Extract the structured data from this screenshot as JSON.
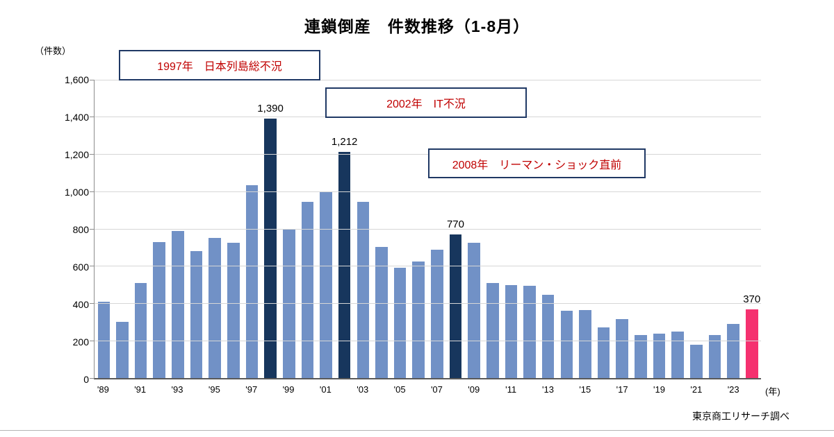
{
  "title": "連鎖倒産　件数推移（1-8月）",
  "y_axis_unit": "（件数）",
  "x_axis_unit": "(年)",
  "source": "東京商工リサーチ調べ",
  "annotations": [
    {
      "text": "1997年　日本列島総不況"
    },
    {
      "text": "2002年　IT不況"
    },
    {
      "text": "2008年　リーマン・ショック直前"
    }
  ],
  "chart_data": {
    "type": "bar",
    "title": "連鎖倒産　件数推移（1-8月）",
    "ylabel": "（件数）",
    "xlabel": "(年)",
    "ylim": [
      0,
      1600
    ],
    "ytick_interval": 200,
    "ytick_labels": [
      "1,600",
      "1,400",
      "1,200",
      "1,000",
      "800",
      "600",
      "400",
      "200",
      "0"
    ],
    "grid": true,
    "legend": "none",
    "x": [
      1989,
      1990,
      1991,
      1992,
      1993,
      1994,
      1995,
      1996,
      1997,
      1998,
      1999,
      2000,
      2001,
      2002,
      2003,
      2004,
      2005,
      2006,
      2007,
      2008,
      2009,
      2010,
      2011,
      2012,
      2013,
      2014,
      2015,
      2016,
      2017,
      2018,
      2019,
      2020,
      2021,
      2022,
      2023,
      2024
    ],
    "values": [
      410,
      300,
      510,
      730,
      790,
      680,
      750,
      725,
      1035,
      1390,
      795,
      945,
      1000,
      1212,
      945,
      705,
      590,
      625,
      690,
      770,
      725,
      510,
      500,
      495,
      445,
      360,
      365,
      270,
      315,
      230,
      240,
      250,
      180,
      230,
      290,
      370
    ],
    "x_tick_labels": [
      "'89",
      "",
      "'91",
      "",
      "'93",
      "",
      "'95",
      "",
      "'97",
      "",
      "'99",
      "",
      "'01",
      "",
      "'03",
      "",
      "'05",
      "",
      "'07",
      "",
      "'09",
      "",
      "'11",
      "",
      "'13",
      "",
      "'15",
      "",
      "'17",
      "",
      "'19",
      "",
      "'21",
      "",
      "'23",
      ""
    ],
    "highlight_years_navy": [
      1998,
      2002,
      2008
    ],
    "highlight_years_pink": [
      2024
    ],
    "bar_value_labels": [
      {
        "year": 1998,
        "label": "1,390"
      },
      {
        "year": 2002,
        "label": "1,212"
      },
      {
        "year": 2008,
        "label": "770"
      },
      {
        "year": 2024,
        "label": "370"
      }
    ],
    "colors": {
      "bar": "#7191C6",
      "highlight_navy": "#17365D",
      "highlight_pink": "#F5316F",
      "gridline": "#D6D6D6",
      "axis": "#595959",
      "annotation_border": "#1F3864",
      "annotation_text": "#C00000"
    }
  }
}
